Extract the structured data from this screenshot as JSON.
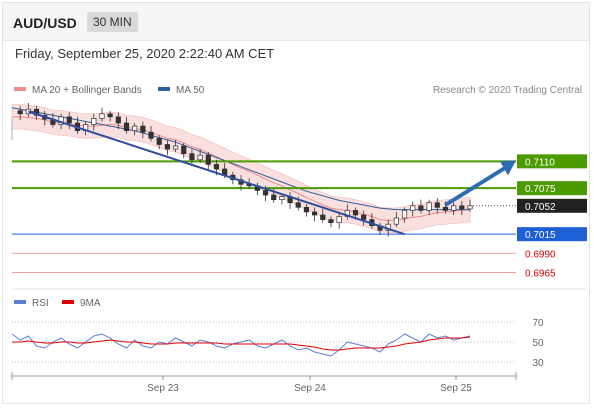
{
  "header": {
    "symbol": "AUD/USD",
    "timeframe": "30 MIN",
    "datetime": "Friday, September 25, 2020 2:22:40 AM CET"
  },
  "legend": {
    "main": [
      {
        "label": "MA 20 + Bollinger Bands",
        "color": "#f08c8c"
      },
      {
        "label": "MA 50",
        "color": "#2f5f9e"
      }
    ],
    "rsi": [
      {
        "label": "RSI",
        "color": "#5b7fd6"
      },
      {
        "label": "9MA",
        "color": "#e00000"
      }
    ]
  },
  "credit": "Research © 2020 Trading Central",
  "colors": {
    "resistance": "#4a9a00",
    "pivot": "#1f5fd6",
    "support": "#f0a0a0",
    "support_text": "#e00000",
    "current_bg": "#222222",
    "arrow": "#2f6db3",
    "trendline": "#2f4f9e"
  },
  "chart_data": [
    {
      "type": "candlestick",
      "title": "",
      "x_tick_labels": [
        "Sep 23",
        "Sep 24",
        "Sep 25"
      ],
      "ylim": [
        0.695,
        0.719
      ],
      "current_price": 0.7052,
      "levels": [
        {
          "label": "0.7110",
          "value": 0.711,
          "kind": "resistance"
        },
        {
          "label": "0.7075",
          "value": 0.7075,
          "kind": "resistance"
        },
        {
          "label": "0.7052",
          "value": 0.7052,
          "kind": "current"
        },
        {
          "label": "0.7015",
          "value": 0.7015,
          "kind": "pivot"
        },
        {
          "label": "0.6990",
          "value": 0.699,
          "kind": "support"
        },
        {
          "label": "0.6965",
          "value": 0.6965,
          "kind": "support"
        }
      ],
      "series": [
        {
          "name": "price",
          "values": [
            0.7176,
            0.7172,
            0.7178,
            0.717,
            0.7165,
            0.7158,
            0.7168,
            0.716,
            0.715,
            0.7158,
            0.7166,
            0.7172,
            0.7168,
            0.716,
            0.715,
            0.7156,
            0.7148,
            0.714,
            0.7132,
            0.7126,
            0.713,
            0.712,
            0.7112,
            0.7118,
            0.7106,
            0.71,
            0.7092,
            0.7086,
            0.708,
            0.7078,
            0.7072,
            0.7066,
            0.706,
            0.7064,
            0.7056,
            0.705,
            0.7044,
            0.704,
            0.7034,
            0.703,
            0.7038,
            0.7046,
            0.704,
            0.7034,
            0.7026,
            0.702,
            0.7028,
            0.7036,
            0.7046,
            0.7052,
            0.7046,
            0.7056,
            0.705,
            0.7046,
            0.7052,
            0.7048,
            0.7052
          ]
        },
        {
          "name": "MA 20",
          "values": [
            0.7168,
            0.7168,
            0.7167,
            0.7166,
            0.7164,
            0.7161,
            0.716,
            0.7159,
            0.7157,
            0.7156,
            0.7156,
            0.7157,
            0.7158,
            0.7157,
            0.7154,
            0.7153,
            0.7151,
            0.7148,
            0.7144,
            0.714,
            0.7138,
            0.7134,
            0.7129,
            0.7126,
            0.7121,
            0.7116,
            0.7111,
            0.7106,
            0.7101,
            0.7097,
            0.7092,
            0.7087,
            0.7082,
            0.7078,
            0.7073,
            0.7068,
            0.7063,
            0.7058,
            0.7053,
            0.7049,
            0.7047,
            0.7046,
            0.7044,
            0.7041,
            0.7038,
            0.7034,
            0.7033,
            0.7033,
            0.7035,
            0.7037,
            0.7038,
            0.7041,
            0.7043,
            0.7044,
            0.7045,
            0.7046,
            0.7047
          ]
        },
        {
          "name": "MA 50",
          "values": [
            0.718,
            0.7178,
            0.7176,
            0.7174,
            0.7172,
            0.717,
            0.7168,
            0.7166,
            0.7164,
            0.7162,
            0.716,
            0.7158,
            0.7156,
            0.7154,
            0.7152,
            0.715,
            0.7147,
            0.7144,
            0.7141,
            0.7138,
            0.7135,
            0.7131,
            0.7127,
            0.7123,
            0.7119,
            0.7115,
            0.7111,
            0.7107,
            0.7103,
            0.7099,
            0.7095,
            0.7091,
            0.7087,
            0.7083,
            0.7079,
            0.7075,
            0.7071,
            0.7068,
            0.7065,
            0.7062,
            0.7059,
            0.7057,
            0.7055,
            0.7053,
            0.7051,
            0.7049,
            0.7048,
            0.7047,
            0.7047,
            0.7047,
            0.7047,
            0.7047,
            0.7047,
            0.7047,
            0.7047,
            0.7047,
            0.7047
          ]
        }
      ],
      "trendline": {
        "from": [
          2,
          0.7175
        ],
        "to": [
          48,
          0.7015
        ]
      },
      "projection": {
        "from": [
          52,
          0.7053
        ],
        "to": [
          56,
          0.711
        ]
      }
    },
    {
      "type": "line",
      "title": "RSI",
      "y_tick_labels": [
        "70",
        "50",
        "30"
      ],
      "ylim": [
        20,
        80
      ],
      "series": [
        {
          "name": "RSI",
          "values": [
            58,
            52,
            56,
            46,
            44,
            50,
            54,
            48,
            44,
            50,
            56,
            58,
            54,
            48,
            44,
            52,
            46,
            44,
            50,
            48,
            54,
            50,
            46,
            52,
            50,
            46,
            44,
            48,
            50,
            52,
            46,
            44,
            48,
            52,
            46,
            42,
            44,
            40,
            38,
            36,
            42,
            50,
            48,
            46,
            44,
            40,
            48,
            52,
            58,
            54,
            50,
            58,
            54,
            56,
            52,
            54,
            56
          ]
        },
        {
          "name": "9MA",
          "values": [
            50,
            50,
            51,
            50,
            49,
            49,
            50,
            50,
            49,
            49,
            50,
            51,
            52,
            51,
            50,
            50,
            49,
            48,
            48,
            48,
            49,
            49,
            49,
            49,
            49,
            49,
            48,
            48,
            48,
            48,
            48,
            48,
            48,
            48,
            48,
            47,
            46,
            45,
            43,
            42,
            42,
            43,
            44,
            44,
            44,
            44,
            45,
            46,
            48,
            49,
            50,
            52,
            53,
            54,
            54,
            54,
            55
          ]
        }
      ]
    }
  ]
}
